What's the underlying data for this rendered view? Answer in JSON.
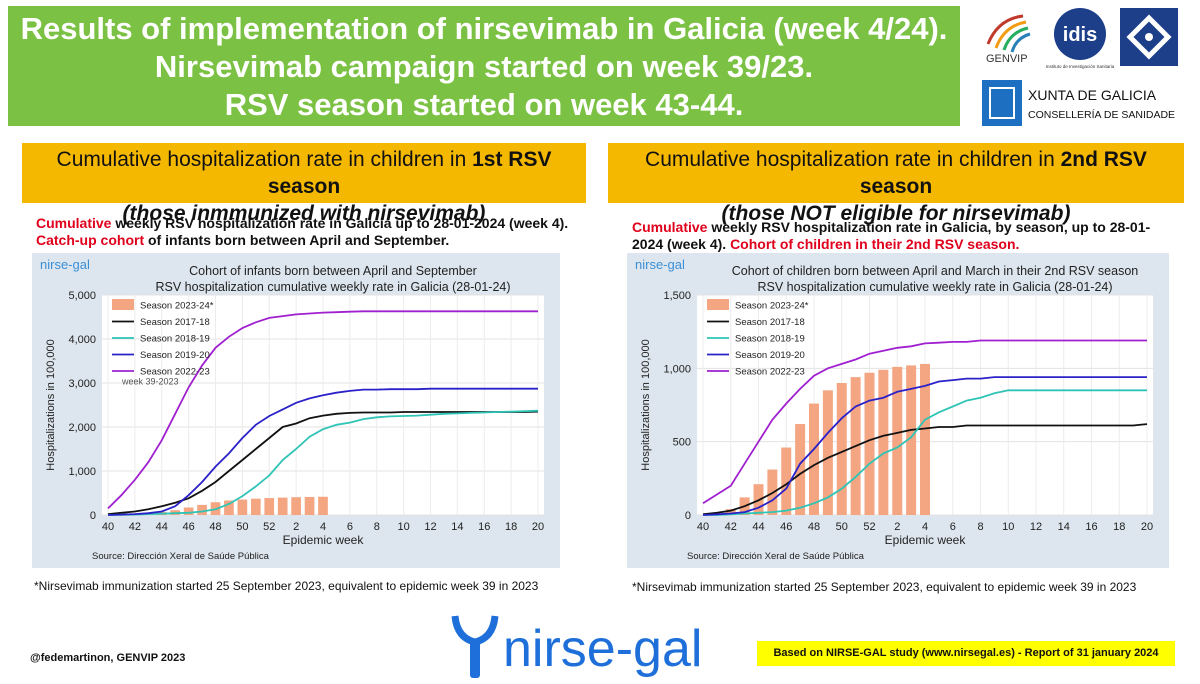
{
  "header": {
    "line1": "Results of implementation of nirsevimab in Galicia (week 4/24).",
    "line2": "Nirsevimab campaign started on week 39/23.",
    "line3": "RSV season started on week 43-44."
  },
  "logos": {
    "genvip": "GENVIP",
    "idis": "idis",
    "idis_sub": "Instituto de Investigación Sanitaria",
    "xunta_line1": "XUNTA DE GALICIA",
    "xunta_line2": "CONSELLERÍA DE SANIDADE",
    "nirsegal": "nirse-gal"
  },
  "panels": [
    {
      "title_prefix": "Cumulative hospitalization rate in children in ",
      "title_bold": "1st RSV season",
      "subtitle": "(those inmmunized with nirsevimab)",
      "cap_red1": "Cumulative",
      "cap_text1": " weekly RSV hospitalization rate in Galicia up to 28-01-2024 (week 4). ",
      "cap_red2": "Catch-up cohort",
      "cap_text2": " of infants born between April and September.",
      "footnote": "*Nirsevimab immunization started 25 September 2023, equivalent to epidemic week 39 in 2023"
    },
    {
      "title_prefix": "Cumulative hospitalization rate in children in ",
      "title_bold": "2nd RSV season",
      "subtitle": "(those NOT eligible for nirsevimab)",
      "cap_red1": "Cumulative",
      "cap_text1": " weekly RSV hospitalization rate in Galicia, by season, up to 28-01-2024 (week 4).  ",
      "cap_red2": "Cohort of children in their 2nd RSV season.",
      "cap_text2": "",
      "footnote": "*Nirsevimab immunization started 25 September 2023, equivalent to epidemic week 39 in 2023"
    }
  ],
  "credit": "@fedemartinon, GENVIP 2023",
  "study": "Based on NIRSE-GAL study (www.nirsegal.es) - Report of 31 january 2024",
  "colors": {
    "bar": "#f4a582",
    "s2017": "#111111",
    "s2018": "#2ec4b6",
    "s2019": "#2a22c8",
    "s2022": "#a020d0",
    "banner": "#7bc144",
    "panel": "#f5b800"
  },
  "chart_data": [
    {
      "type": "line",
      "watermark": "nirse-gal",
      "title": "Cohort of infants born between April and September",
      "subtitle": "RSV hospitalization cumulative weekly rate in Galicia (28-01-24)",
      "xlabel": "Epidemic week",
      "ylabel": "Hospitalizations in 100,000",
      "source": "Source: Dirección Xeral de Saúde Pública",
      "ylim": [
        0,
        5000
      ],
      "yticks": [
        0,
        1000,
        2000,
        3000,
        4000,
        5000
      ],
      "ytick_labels": [
        "0",
        "1,000",
        "2,000",
        "3,000",
        "4,000",
        "5,000"
      ],
      "xtick_labels": [
        "40",
        "42",
        "44",
        "46",
        "48",
        "50",
        "52",
        "2",
        "4",
        "6",
        "8",
        "10",
        "12",
        "14",
        "16",
        "18",
        "20"
      ],
      "weeks": [
        "40",
        "41",
        "42",
        "43",
        "44",
        "45",
        "46",
        "47",
        "48",
        "49",
        "50",
        "51",
        "52",
        "1",
        "2",
        "3",
        "4",
        "5",
        "6",
        "7",
        "8",
        "9",
        "10",
        "11",
        "12",
        "13",
        "14",
        "15",
        "16",
        "17",
        "18",
        "19",
        "20"
      ],
      "legend_note": "week 39-2023",
      "grid": true,
      "legend": "top-left",
      "bars": {
        "name": "Season 2023-24*",
        "values": [
          0,
          10,
          20,
          40,
          70,
          110,
          170,
          230,
          290,
          330,
          350,
          370,
          385,
          395,
          405,
          410,
          415
        ]
      },
      "series": [
        {
          "name": "Season 2017-18",
          "key": "s2017",
          "values": [
            20,
            50,
            80,
            130,
            200,
            280,
            380,
            550,
            750,
            1000,
            1250,
            1500,
            1750,
            2000,
            2080,
            2200,
            2260,
            2300,
            2320,
            2330,
            2330,
            2330,
            2340,
            2340,
            2340,
            2340,
            2340,
            2340,
            2340,
            2340,
            2340,
            2340,
            2350
          ]
        },
        {
          "name": "Season 2018-19",
          "key": "s2018",
          "values": [
            0,
            5,
            10,
            20,
            30,
            40,
            50,
            80,
            130,
            250,
            430,
            650,
            900,
            1250,
            1500,
            1780,
            1950,
            2050,
            2100,
            2180,
            2220,
            2240,
            2250,
            2260,
            2280,
            2300,
            2310,
            2320,
            2330,
            2340,
            2350,
            2360,
            2370
          ]
        },
        {
          "name": "Season 2019-20",
          "key": "s2019",
          "values": [
            0,
            10,
            20,
            40,
            80,
            200,
            450,
            750,
            1100,
            1400,
            1750,
            2050,
            2250,
            2400,
            2550,
            2650,
            2720,
            2780,
            2820,
            2850,
            2850,
            2860,
            2860,
            2860,
            2870,
            2870,
            2870,
            2870,
            2870,
            2870,
            2870,
            2870,
            2870
          ]
        },
        {
          "name": "Season 2022-23",
          "key": "s2022",
          "values": [
            150,
            450,
            800,
            1200,
            1700,
            2300,
            2900,
            3400,
            3800,
            4050,
            4250,
            4380,
            4480,
            4520,
            4560,
            4580,
            4600,
            4610,
            4620,
            4630,
            4630,
            4630,
            4630,
            4630,
            4630,
            4630,
            4630,
            4630,
            4630,
            4630,
            4630,
            4630,
            4630
          ]
        }
      ]
    },
    {
      "type": "line",
      "watermark": "nirse-gal",
      "title": "Cohort of children born between April and March in their 2nd RSV season",
      "subtitle": "RSV hospitalization cumulative weekly rate in Galicia (28-01-24)",
      "xlabel": "Epidemic week",
      "ylabel": "Hospitalizations in 100,000",
      "source": "Source: Dirección Xeral de Saúde Pública",
      "ylim": [
        0,
        1500
      ],
      "yticks": [
        0,
        500,
        1000,
        1500
      ],
      "ytick_labels": [
        "0",
        "500",
        "1,000",
        "1,500"
      ],
      "xtick_labels": [
        "40",
        "42",
        "44",
        "46",
        "48",
        "50",
        "52",
        "2",
        "4",
        "6",
        "8",
        "10",
        "12",
        "14",
        "16",
        "18",
        "20"
      ],
      "weeks": [
        "40",
        "41",
        "42",
        "43",
        "44",
        "45",
        "46",
        "47",
        "48",
        "49",
        "50",
        "51",
        "52",
        "1",
        "2",
        "3",
        "4",
        "5",
        "6",
        "7",
        "8",
        "9",
        "10",
        "11",
        "12",
        "13",
        "14",
        "15",
        "16",
        "17",
        "18",
        "19",
        "20"
      ],
      "grid": true,
      "legend": "top-left",
      "bars": {
        "name": "Season 2023-24*",
        "values": [
          0,
          10,
          40,
          120,
          210,
          310,
          460,
          620,
          760,
          850,
          900,
          940,
          970,
          990,
          1010,
          1020,
          1030
        ]
      },
      "series": [
        {
          "name": "Season 2017-18",
          "key": "s2017",
          "values": [
            5,
            15,
            30,
            60,
            100,
            150,
            210,
            280,
            340,
            390,
            430,
            470,
            510,
            540,
            560,
            580,
            590,
            600,
            600,
            610,
            610,
            610,
            610,
            610,
            610,
            610,
            610,
            610,
            610,
            610,
            610,
            610,
            620
          ]
        },
        {
          "name": "Season 2018-19",
          "key": "s2018",
          "values": [
            0,
            0,
            5,
            10,
            15,
            20,
            30,
            50,
            80,
            120,
            180,
            260,
            350,
            420,
            460,
            530,
            650,
            700,
            740,
            780,
            800,
            830,
            850,
            850,
            850,
            850,
            850,
            850,
            850,
            850,
            850,
            850,
            850
          ]
        },
        {
          "name": "Season 2019-20",
          "key": "s2019",
          "values": [
            0,
            5,
            10,
            20,
            50,
            100,
            180,
            350,
            450,
            560,
            660,
            740,
            780,
            800,
            840,
            860,
            880,
            910,
            920,
            930,
            930,
            940,
            940,
            940,
            940,
            940,
            940,
            940,
            940,
            940,
            940,
            940,
            940
          ]
        },
        {
          "name": "Season 2022-23",
          "key": "s2022",
          "values": [
            80,
            140,
            200,
            350,
            500,
            650,
            760,
            860,
            950,
            1000,
            1030,
            1060,
            1100,
            1120,
            1140,
            1150,
            1170,
            1175,
            1180,
            1180,
            1190,
            1190,
            1190,
            1190,
            1190,
            1190,
            1190,
            1190,
            1190,
            1190,
            1190,
            1190,
            1190
          ]
        }
      ]
    }
  ]
}
